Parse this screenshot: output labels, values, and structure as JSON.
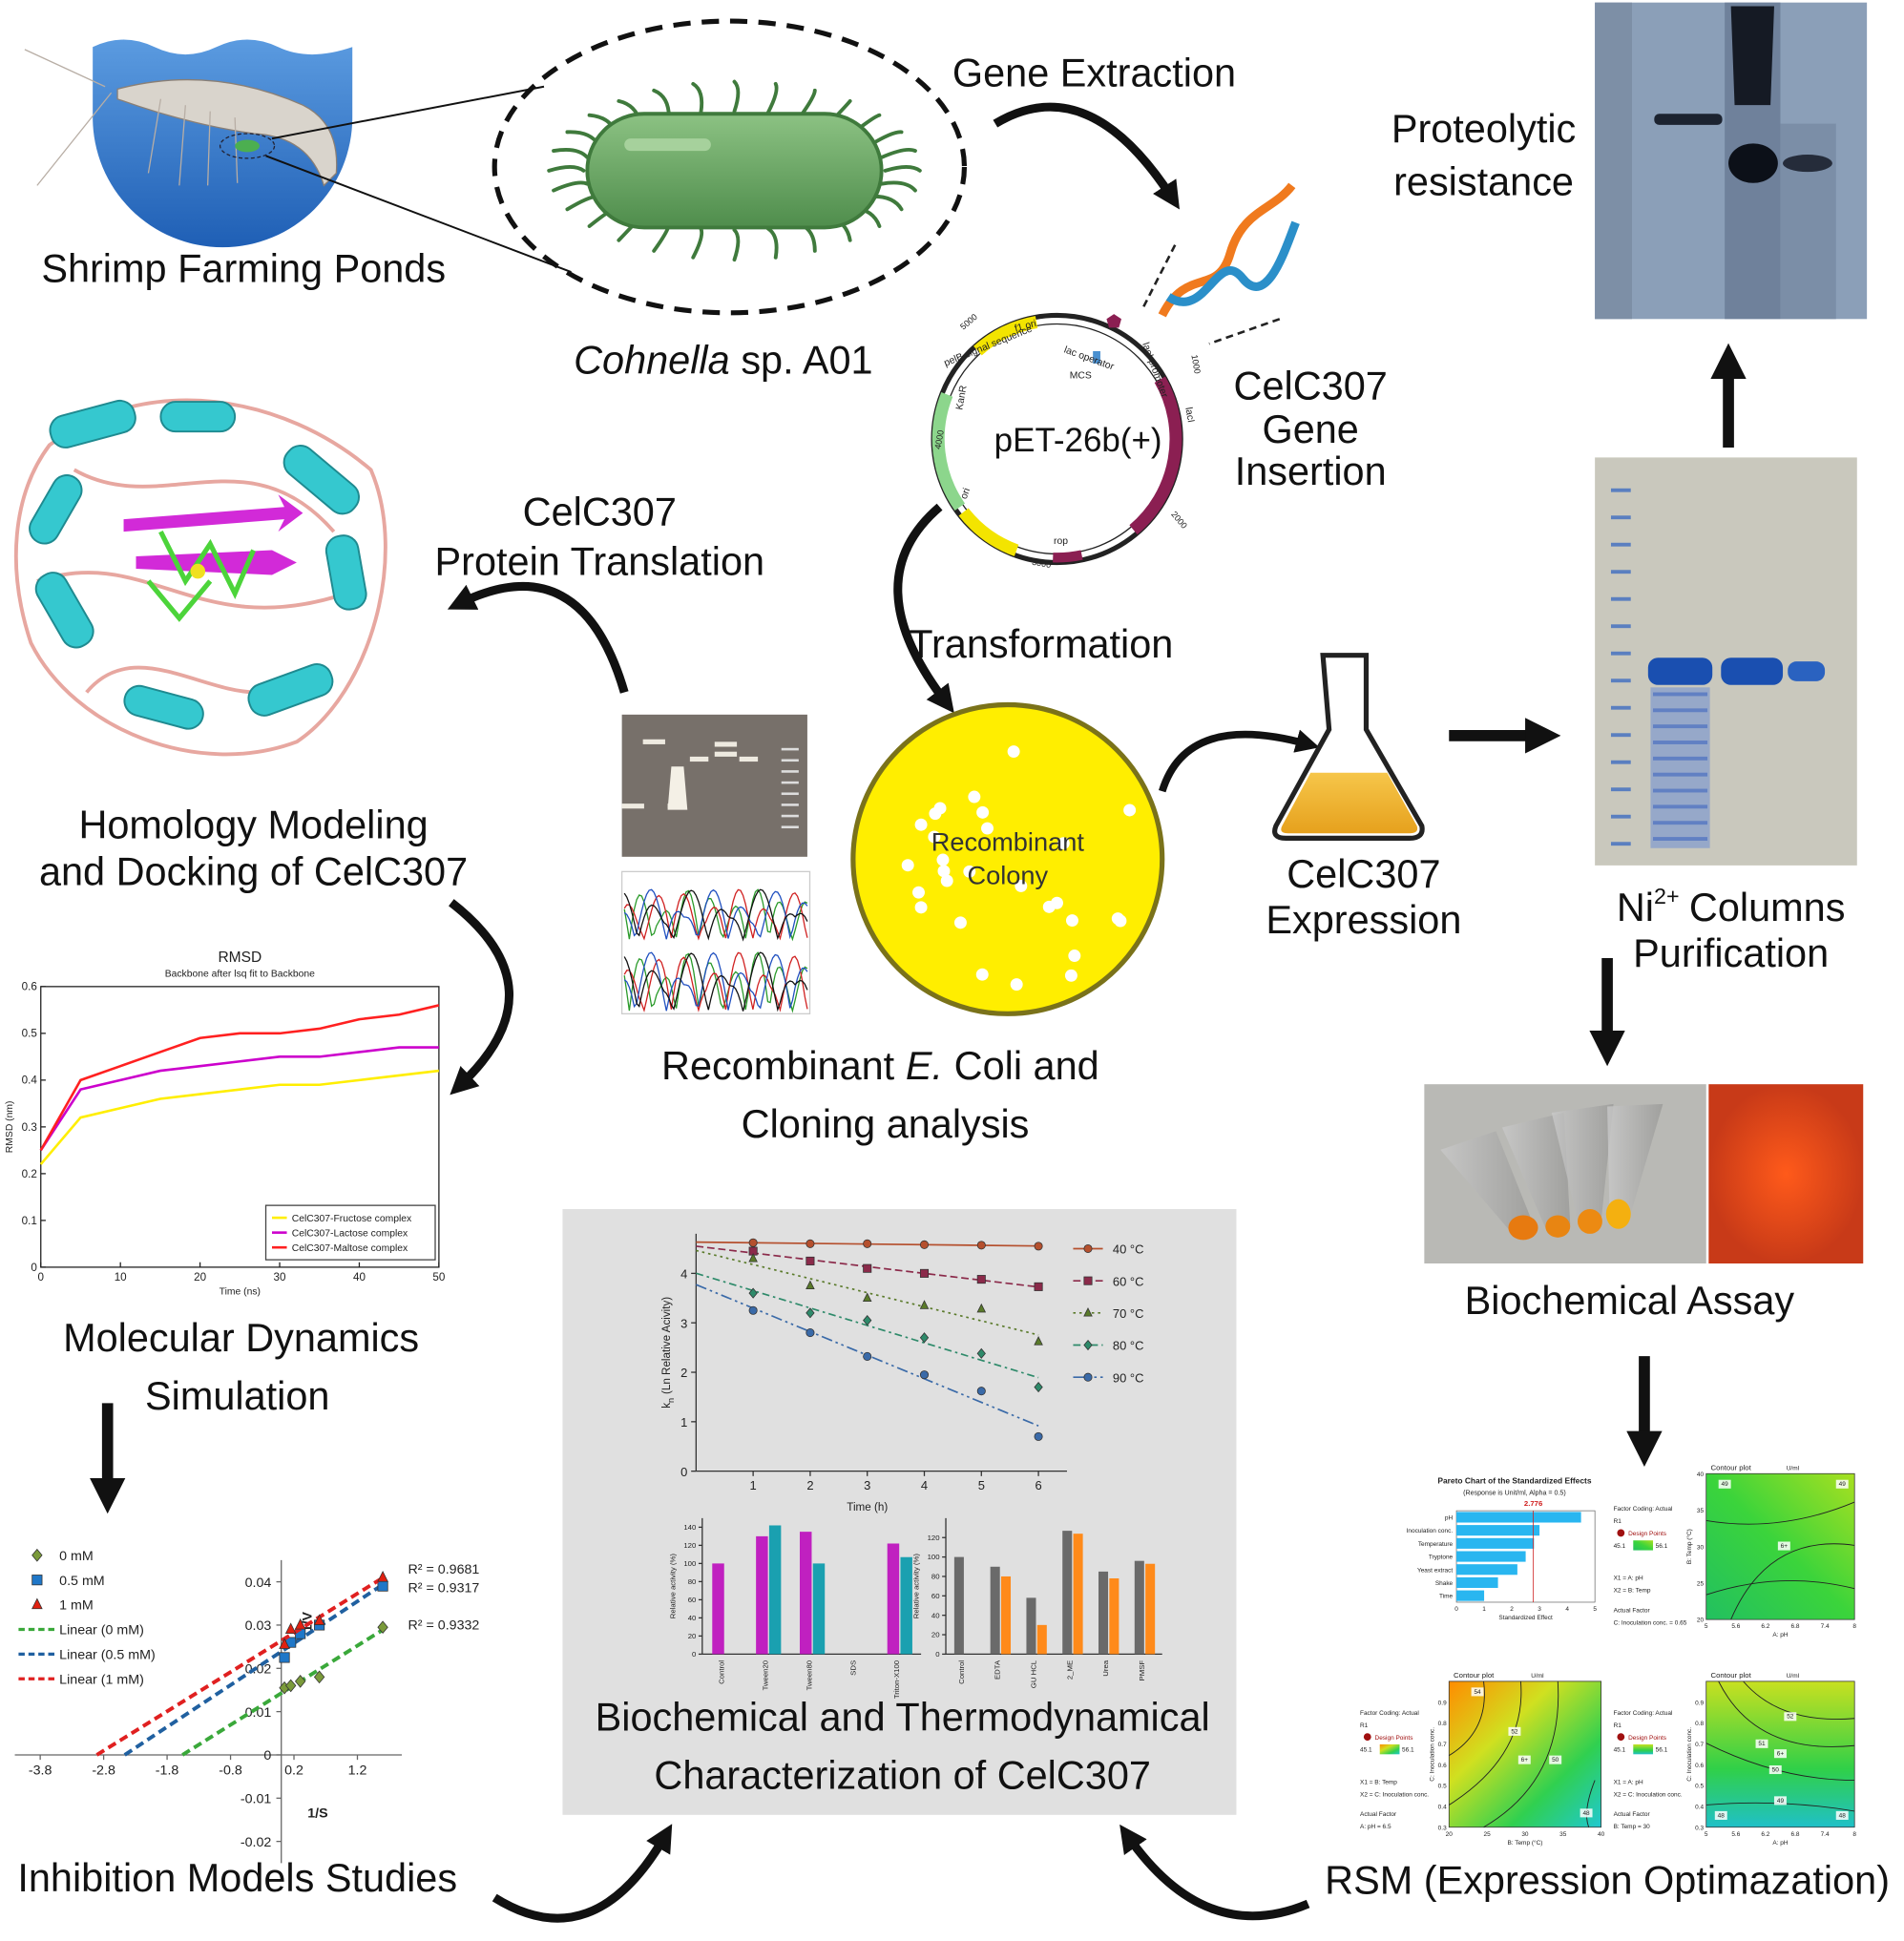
{
  "labels": {
    "shrimp": "Shrimp Farming Ponds",
    "cohnella_italic": "Cohnella",
    "cohnella_rest": "sp. A01",
    "gene_extraction": "Gene Extraction",
    "gene_insertion": [
      "CelC307",
      "Gene",
      "Insertion"
    ],
    "proteolytic": [
      "Proteolytic",
      "resistance"
    ],
    "translation": [
      "CelC307",
      "Protein Translation"
    ],
    "transformation": "Transformation",
    "colony": [
      "Recombinant",
      "Colony"
    ],
    "expression": [
      "CelC307",
      "Expression"
    ],
    "purification": {
      "ni": "Ni",
      "sup": "2+",
      "rest": "Columns",
      "line2": "Purification"
    },
    "homology": [
      "Homology Modeling",
      "and Docking of CelC307"
    ],
    "cloning": {
      "line1_a": "Recombinant",
      "line1_i": "E.",
      "line1_b": "Coli and",
      "line2": "Cloning analysis"
    },
    "md": [
      "Molecular Dynamics",
      "Simulation"
    ],
    "biochem_assay": "Biochemical Assay",
    "inhibition": "Inhibition Models Studies",
    "characterization": [
      "Biochemical and Thermodynamical",
      "Characterization of CelC307"
    ],
    "rsm": "RSM (Expression Optimazation)"
  },
  "plasmid": {
    "name": "pET-26b(+)",
    "features": [
      "f1 ori",
      "pelB signal sequence",
      "lac operator",
      "MCS",
      "lacI promoter",
      "lacI",
      "KanR",
      "ori",
      "rop"
    ],
    "positions": [
      5000,
      4000,
      3000,
      2000,
      1000
    ]
  },
  "rmsd": {
    "title": "RMSD",
    "subtitle": "Backbone after lsq fit to Backbone",
    "x_label": "Time (ns)",
    "y_label": "RMSD (nm)",
    "x": [
      0,
      5,
      10,
      15,
      20,
      25,
      30,
      35,
      40,
      45,
      50
    ],
    "xlim": [
      0,
      50
    ],
    "ylim": [
      0,
      0.6
    ],
    "xticks": [
      0,
      10,
      20,
      30,
      40,
      50
    ],
    "yticks": [
      0,
      0.1,
      0.2,
      0.3,
      0.4,
      0.5,
      0.6
    ],
    "series": [
      {
        "name": "CelC307-Fructose complex",
        "color": "#ffee00",
        "values": [
          0.22,
          0.32,
          0.34,
          0.36,
          0.37,
          0.38,
          0.39,
          0.39,
          0.4,
          0.41,
          0.42
        ]
      },
      {
        "name": "CelC307-Lactose complex",
        "color": "#cc00cc",
        "values": [
          0.25,
          0.38,
          0.4,
          0.42,
          0.43,
          0.44,
          0.45,
          0.45,
          0.46,
          0.47,
          0.47
        ]
      },
      {
        "name": "CelC307-Maltose complex",
        "color": "#ff2020",
        "values": [
          0.25,
          0.4,
          0.43,
          0.46,
          0.49,
          0.5,
          0.5,
          0.51,
          0.53,
          0.54,
          0.56
        ]
      }
    ]
  },
  "inhibition_plot": {
    "x_label": "1/S",
    "y_label": "1/V",
    "x": [
      0.05,
      0.15,
      0.3,
      0.6,
      1.6
    ],
    "xlim": [
      -4.2,
      1.9
    ],
    "ylim": [
      -0.025,
      0.045
    ],
    "xticks": [
      -3.8,
      -2.8,
      -1.8,
      -0.8,
      0.2,
      1.2
    ],
    "yticks": [
      -0.02,
      -0.01,
      0,
      0.01,
      0.02,
      0.03,
      0.04
    ],
    "series": [
      {
        "name": "0 mM",
        "color": "#7a9a3a",
        "marker": "diamond",
        "fit_name": "Linear (0 mM)",
        "fit_color": "#3aa83a",
        "r2_label": "R² = 0.9332",
        "values": [
          0.0155,
          0.016,
          0.017,
          0.018,
          0.0295
        ]
      },
      {
        "name": "0.5 mM",
        "color": "#1f77c8",
        "marker": "square",
        "fit_name": "Linear (0.5 mM)",
        "fit_color": "#2060a0",
        "r2_label": "R² = 0.9317",
        "values": [
          0.0225,
          0.026,
          0.028,
          0.03,
          0.039
        ]
      },
      {
        "name": "1 mM",
        "color": "#e02010",
        "marker": "triangle",
        "fit_name": "Linear (1 mM)",
        "fit_color": "#e02020",
        "r2_label": "R² = 0.9681",
        "values": [
          0.0255,
          0.029,
          0.03,
          0.031,
          0.041
        ]
      }
    ]
  },
  "kinetics": {
    "y_label_main": "k",
    "y_label_sub": "n",
    "y_label_rest": "(Ln Relative Acivity)",
    "x_label": "Time (h)",
    "x": [
      1,
      2,
      3,
      4,
      5,
      6
    ],
    "xlim": [
      0,
      6.5
    ],
    "ylim": [
      0,
      4.8
    ],
    "xticks": [
      1,
      2,
      3,
      4,
      5,
      6
    ],
    "yticks": [
      0,
      1,
      2,
      3,
      4
    ],
    "series": [
      {
        "name": "40 °C",
        "color": "#b5502e",
        "marker": "circle",
        "line_style": "solid",
        "values": [
          4.62,
          4.6,
          4.6,
          4.58,
          4.57,
          4.55
        ]
      },
      {
        "name": "60 °C",
        "color": "#8b2a4a",
        "marker": "square",
        "line_style": "dashed",
        "values": [
          4.45,
          4.25,
          4.1,
          4.0,
          3.88,
          3.73
        ]
      },
      {
        "name": "70 °C",
        "color": "#5a7a2a",
        "marker": "triangle",
        "line_style": "dotted",
        "values": [
          4.3,
          3.75,
          3.5,
          3.35,
          3.28,
          2.62
        ]
      },
      {
        "name": "80 °C",
        "color": "#2e8a6a",
        "marker": "diamond",
        "line_style": "dashdot",
        "values": [
          3.6,
          3.2,
          3.05,
          2.7,
          2.38,
          1.7
        ]
      },
      {
        "name": "90 °C",
        "color": "#3a6aa8",
        "marker": "circle",
        "line_style": "longdash",
        "values": [
          3.25,
          2.8,
          2.32,
          1.95,
          1.62,
          0.7
        ]
      }
    ]
  },
  "bar_charts": [
    {
      "y_label": "Relative activity (%)",
      "categories": [
        "Control",
        "Tween20",
        "Tween80",
        "SDS",
        "Triton-X100"
      ],
      "ylim": [
        0,
        150
      ],
      "yticks": [
        0,
        20,
        40,
        60,
        80,
        100,
        120,
        140
      ],
      "series": [
        {
          "color": "#c020c0",
          "values": [
            100,
            130,
            135,
            0,
            122
          ]
        },
        {
          "color": "#1aa0b0",
          "values": [
            null,
            142,
            100,
            0,
            107
          ]
        }
      ]
    },
    {
      "y_label": "Relative activity (%)",
      "categories": [
        "Control",
        "EDTA",
        "GU HCL",
        "2_ME",
        "Urea",
        "PMSF"
      ],
      "ylim": [
        0,
        140
      ],
      "yticks": [
        0,
        20,
        40,
        60,
        80,
        100,
        120
      ],
      "series": [
        {
          "color": "#6a6a6a",
          "values": [
            100,
            90,
            58,
            127,
            85,
            96
          ]
        },
        {
          "color": "#ff8a1a",
          "values": [
            null,
            80,
            30,
            124,
            78,
            93
          ]
        }
      ]
    }
  ],
  "pareto": {
    "title": "Pareto Chart of the Standardized Effects",
    "subtitle": "(Response is Unit/ml, Alpha = 0.5)",
    "threshold": 2.776,
    "x_label": "Standardized Effect",
    "categories": [
      "pH",
      "Inoculation conc.",
      "Temperature",
      "Tryptone",
      "Yeast extract",
      "Shake",
      "Time"
    ],
    "values": [
      4.5,
      3.0,
      2.8,
      2.5,
      2.2,
      1.5,
      1.0
    ],
    "color": "#29b6f0",
    "xlim": [
      0,
      5
    ],
    "xticks": [
      0,
      1,
      2,
      3,
      4,
      5
    ]
  },
  "contours": [
    {
      "title": "Contour plot",
      "unit": "U/ml",
      "x_label": "A: pH",
      "y_label": "B: Temp (°C)",
      "xlim": [
        5,
        8
      ],
      "ylim": [
        20,
        40
      ],
      "xticks": [
        5,
        5.6,
        6.2,
        6.8,
        7.4,
        8
      ],
      "yticks": [
        20,
        25,
        30,
        35,
        40
      ],
      "contour_labels": [
        "49",
        "49",
        "6+"
      ],
      "side": [
        "Factor Coding: Actual",
        "R1",
        "Design Points",
        "45.1",
        "56.1",
        "X1 = A: pH",
        "X2 = B: Temp",
        "Actual Factor",
        "C: Inoculation conc. = 0.65"
      ]
    },
    {
      "title": "Contour plot",
      "unit": "U/ml",
      "x_label": "B: Temp (°C)",
      "y_label": "C: Inoculation conc.",
      "xlim": [
        20,
        40
      ],
      "ylim": [
        0.3,
        1
      ],
      "xticks": [
        20,
        25,
        30,
        35,
        40
      ],
      "yticks": [
        0.3,
        0.4,
        0.5,
        0.6,
        0.7,
        0.8,
        0.9
      ],
      "contour_labels": [
        "54",
        "52",
        "50",
        "48",
        "6+"
      ],
      "side": [
        "Factor Coding: Actual",
        "R1",
        "Design Points",
        "45.1",
        "56.1",
        "X1 = B: Temp",
        "X2 = C: Inoculation conc.",
        "Actual Factor",
        "A: pH = 6.5"
      ]
    },
    {
      "title": "Contour plot",
      "unit": "U/ml",
      "x_label": "A: pH",
      "y_label": "C: Inoculation conc.",
      "xlim": [
        5,
        8
      ],
      "ylim": [
        0.3,
        1
      ],
      "xticks": [
        5,
        5.6,
        6.2,
        6.8,
        7.4,
        8
      ],
      "yticks": [
        0.3,
        0.4,
        0.5,
        0.6,
        0.7,
        0.8,
        0.9
      ],
      "contour_labels": [
        "52",
        "51",
        "50",
        "49",
        "48",
        "48",
        "6+"
      ],
      "side": [
        "Factor Coding: Actual",
        "R1",
        "Design Points",
        "45.1",
        "56.1",
        "X1 = A: pH",
        "X2 = C: Inoculation conc.",
        "Actual Factor",
        "B: Temp = 30"
      ]
    }
  ]
}
